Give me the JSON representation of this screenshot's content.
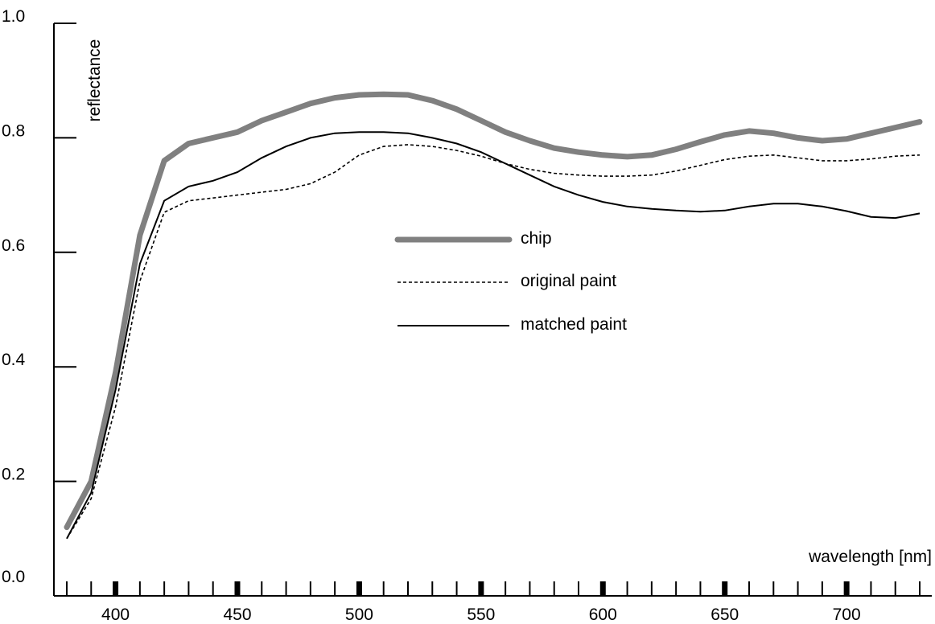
{
  "chart_data": {
    "type": "line",
    "xlabel": "wavelength [nm]",
    "ylabel": "reflectance",
    "xlim": [
      380,
      730
    ],
    "ylim": [
      0.0,
      1.0
    ],
    "x_ticks": [
      400,
      450,
      500,
      550,
      600,
      650,
      700
    ],
    "y_ticks": [
      "0.0",
      "0.2",
      "0.4",
      "0.6",
      "0.8",
      "1.0"
    ],
    "x_minor_step": 10,
    "legend_position": "center",
    "x": [
      380,
      390,
      400,
      410,
      420,
      430,
      440,
      450,
      460,
      470,
      480,
      490,
      500,
      510,
      520,
      530,
      540,
      550,
      560,
      570,
      580,
      590,
      600,
      610,
      620,
      630,
      640,
      650,
      660,
      670,
      680,
      690,
      700,
      710,
      720,
      730
    ],
    "series": [
      {
        "name": "chip",
        "style": "thick-gray",
        "color": "#808080",
        "values": [
          0.12,
          0.2,
          0.39,
          0.63,
          0.76,
          0.79,
          0.8,
          0.81,
          0.83,
          0.845,
          0.86,
          0.87,
          0.875,
          0.876,
          0.875,
          0.865,
          0.85,
          0.83,
          0.81,
          0.795,
          0.782,
          0.775,
          0.77,
          0.767,
          0.77,
          0.78,
          0.793,
          0.805,
          0.812,
          0.808,
          0.8,
          0.795,
          0.798,
          0.808,
          0.818,
          0.828
        ]
      },
      {
        "name": "original paint",
        "style": "dotted",
        "color": "#000000",
        "values": [
          0.1,
          0.17,
          0.33,
          0.55,
          0.67,
          0.69,
          0.695,
          0.7,
          0.705,
          0.71,
          0.72,
          0.74,
          0.77,
          0.785,
          0.788,
          0.785,
          0.778,
          0.768,
          0.755,
          0.745,
          0.738,
          0.735,
          0.733,
          0.733,
          0.735,
          0.742,
          0.752,
          0.762,
          0.768,
          0.77,
          0.765,
          0.76,
          0.76,
          0.763,
          0.768,
          0.77
        ]
      },
      {
        "name": "matched paint",
        "style": "solid-thin",
        "color": "#000000",
        "values": [
          0.1,
          0.18,
          0.36,
          0.58,
          0.69,
          0.715,
          0.725,
          0.74,
          0.765,
          0.785,
          0.8,
          0.808,
          0.81,
          0.81,
          0.808,
          0.8,
          0.79,
          0.775,
          0.755,
          0.735,
          0.715,
          0.7,
          0.688,
          0.68,
          0.676,
          0.673,
          0.671,
          0.673,
          0.68,
          0.685,
          0.685,
          0.68,
          0.672,
          0.662,
          0.66,
          0.668
        ]
      }
    ]
  }
}
